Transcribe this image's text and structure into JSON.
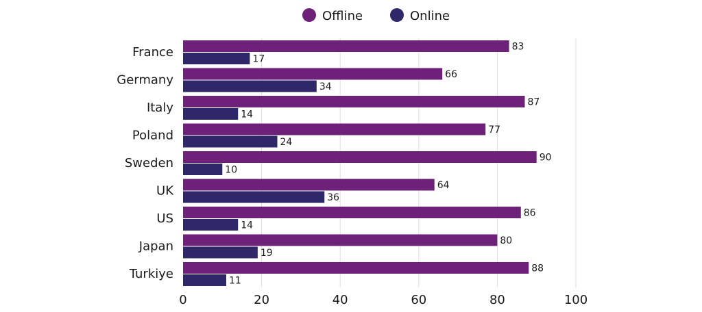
{
  "chart_data": {
    "type": "bar",
    "orientation": "horizontal",
    "categories": [
      "France",
      "Germany",
      "Italy",
      "Poland",
      "Sweden",
      "UK",
      "US",
      "Japan",
      "Turkiye"
    ],
    "series": [
      {
        "name": "Offline",
        "color": "#6e2178",
        "values": [
          83,
          66,
          87,
          77,
          90,
          64,
          86,
          80,
          88
        ]
      },
      {
        "name": "Online",
        "color": "#2f2868",
        "values": [
          17,
          34,
          14,
          24,
          10,
          36,
          14,
          19,
          11
        ]
      }
    ],
    "xlim": [
      0,
      100
    ],
    "xticks": [
      0,
      20,
      40,
      60,
      80,
      100
    ],
    "grid": "vertical",
    "legend": "top-center"
  }
}
